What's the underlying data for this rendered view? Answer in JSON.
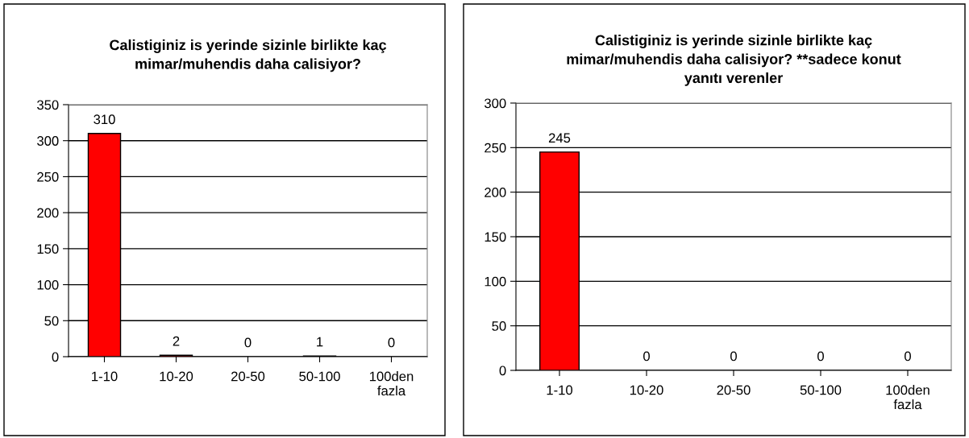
{
  "chart_data": [
    {
      "type": "bar",
      "title": "Calistiginiz is yerinde sizinle birlikte kaç\nmimar/muhendis daha calisiyor?",
      "categories": [
        "1-10",
        "10-20",
        "20-50",
        "50-100",
        "100den\nfazla"
      ],
      "values": [
        310,
        2,
        0,
        1,
        0
      ],
      "color": "#ff0000",
      "ylim": [
        0,
        350
      ],
      "yticks": [
        0,
        50,
        100,
        150,
        200,
        250,
        300,
        350
      ],
      "grid": "y",
      "data_labels": true
    },
    {
      "type": "bar",
      "title": "Calistiginiz is yerinde sizinle birlikte kaç\nmimar/muhendis daha calisiyor? **sadece konut\nyanıtı verenler",
      "categories": [
        "1-10",
        "10-20",
        "20-50",
        "50-100",
        "100den\nfazla"
      ],
      "values": [
        245,
        0,
        0,
        0,
        0
      ],
      "color": "#ff0000",
      "ylim": [
        0,
        300
      ],
      "yticks": [
        0,
        50,
        100,
        150,
        200,
        250,
        300
      ],
      "grid": "y",
      "data_labels": true
    }
  ]
}
